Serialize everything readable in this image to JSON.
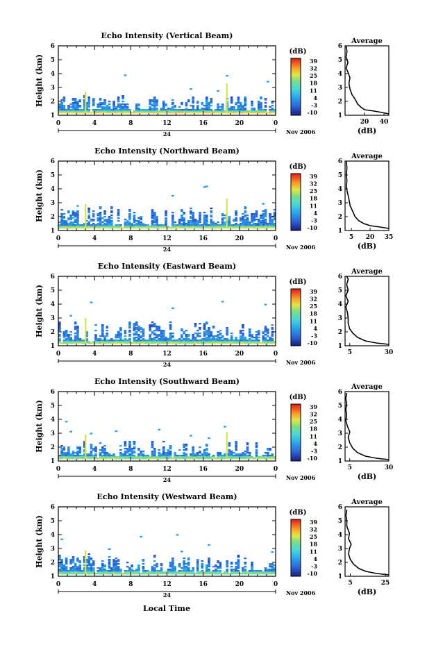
{
  "chart_data": [
    {
      "type": "heatmap",
      "title": "Echo Intensity (Vertical Beam)",
      "ylabel": "Height (km)",
      "ylim": [
        1,
        6
      ],
      "yticks": [
        "1",
        "2",
        "3",
        "4",
        "5",
        "6"
      ],
      "xlim": [
        0,
        24
      ],
      "xticks": [
        "0",
        "4",
        "8",
        "12",
        "16",
        "20",
        "0"
      ],
      "date_label": "24",
      "month_label": "Nov 2006",
      "colorbar": {
        "unit": "(dB)",
        "range": [
          -10,
          40
        ],
        "ticks": [
          "39",
          "32",
          "25",
          "18",
          "11",
          "4",
          "-3",
          "-10"
        ]
      },
      "sparse_echo": {
        "top_km": 2.4,
        "bright_band_db": 30,
        "spike_hours": [
          3.0,
          18.6
        ],
        "spike_top_km": [
          2.7,
          3.3
        ]
      },
      "average": {
        "title": "Average",
        "xlabel": "(dB)",
        "xlim": [
          0,
          45
        ],
        "xticks": [
          "20",
          "40"
        ],
        "ylim": [
          1,
          6
        ],
        "yticks": [
          "1",
          "2",
          "3",
          "4",
          "5",
          "6"
        ],
        "points": [
          [
            45,
            1.1
          ],
          [
            38,
            1.2
          ],
          [
            30,
            1.3
          ],
          [
            20,
            1.4
          ],
          [
            16,
            1.6
          ],
          [
            13,
            1.8
          ],
          [
            10,
            2.2
          ],
          [
            7,
            2.5
          ],
          [
            5,
            2.9
          ],
          [
            4,
            3.3
          ],
          [
            5,
            3.7
          ],
          [
            3,
            4.1
          ],
          [
            1,
            4.4
          ],
          [
            3,
            4.8
          ],
          [
            1,
            5.2
          ],
          [
            2,
            5.6
          ],
          [
            1,
            6.0
          ]
        ]
      }
    },
    {
      "type": "heatmap",
      "title": "Echo Intensity (Northward Beam)",
      "ylabel": "Height (km)",
      "ylim": [
        1,
        6
      ],
      "yticks": [
        "1",
        "2",
        "3",
        "4",
        "5",
        "6"
      ],
      "xlim": [
        0,
        24
      ],
      "xticks": [
        "0",
        "4",
        "8",
        "12",
        "16",
        "20",
        "0"
      ],
      "date_label": "24",
      "month_label": "Nov 2006",
      "colorbar": {
        "unit": "(dB)",
        "range": [
          -10,
          40
        ],
        "ticks": [
          "39",
          "32",
          "25",
          "18",
          "11",
          "4",
          "-3",
          "-10"
        ]
      },
      "sparse_echo": {
        "top_km": 2.7,
        "bright_band_db": 28,
        "spike_hours": [
          3.0,
          18.6
        ],
        "spike_top_km": [
          2.9,
          3.3
        ]
      },
      "average": {
        "title": "Average",
        "xlabel": "(dB)",
        "xlim": [
          0,
          35
        ],
        "xticks": [
          "5",
          "20",
          "35"
        ],
        "ylim": [
          1,
          6
        ],
        "yticks": [
          "1",
          "2",
          "3",
          "4",
          "5",
          "6"
        ],
        "points": [
          [
            35,
            1.15
          ],
          [
            28,
            1.25
          ],
          [
            20,
            1.35
          ],
          [
            15,
            1.5
          ],
          [
            11,
            1.7
          ],
          [
            8,
            2.0
          ],
          [
            6,
            2.4
          ],
          [
            4,
            2.8
          ],
          [
            3,
            3.3
          ],
          [
            2,
            3.7
          ],
          [
            1,
            4.1
          ],
          [
            1.5,
            4.6
          ],
          [
            1,
            5.0
          ],
          [
            1.5,
            5.5
          ],
          [
            1,
            6.0
          ]
        ]
      }
    },
    {
      "type": "heatmap",
      "title": "Echo Intensity (Eastward Beam)",
      "ylabel": "Height (km)",
      "ylim": [
        1,
        6
      ],
      "yticks": [
        "1",
        "2",
        "3",
        "4",
        "5",
        "6"
      ],
      "xlim": [
        0,
        24
      ],
      "xticks": [
        "0",
        "4",
        "8",
        "12",
        "16",
        "20",
        "0"
      ],
      "date_label": "24",
      "month_label": "Nov 2006",
      "colorbar": {
        "unit": "(dB)",
        "range": [
          -10,
          40
        ],
        "ticks": [
          "39",
          "32",
          "25",
          "18",
          "11",
          "4",
          "-3",
          "-10"
        ]
      },
      "sparse_echo": {
        "top_km": 2.8,
        "bright_band_db": 26,
        "spike_hours": [
          3.0
        ],
        "spike_top_km": [
          3.0
        ]
      },
      "average": {
        "title": "Average",
        "xlabel": "",
        "xlim": [
          2,
          30
        ],
        "xticks": [
          "5",
          "30"
        ],
        "ylim": [
          1,
          6
        ],
        "yticks": [
          "1",
          "2",
          "3",
          "4",
          "5",
          "6"
        ],
        "points": [
          [
            30,
            1.1
          ],
          [
            22,
            1.2
          ],
          [
            15,
            1.35
          ],
          [
            10,
            1.6
          ],
          [
            7,
            1.9
          ],
          [
            5,
            2.2
          ],
          [
            4,
            2.6
          ],
          [
            4,
            3.0
          ],
          [
            3.5,
            3.4
          ],
          [
            2.5,
            3.8
          ],
          [
            4,
            4.2
          ],
          [
            2.5,
            4.6
          ],
          [
            4,
            5.0
          ],
          [
            3,
            5.4
          ],
          [
            4,
            5.8
          ],
          [
            3,
            6.0
          ]
        ]
      }
    },
    {
      "type": "heatmap",
      "title": "Echo Intensity (Southward Beam)",
      "ylabel": "Height (km)",
      "ylim": [
        1,
        6
      ],
      "yticks": [
        "1",
        "2",
        "3",
        "4",
        "5",
        "6"
      ],
      "xlim": [
        0,
        24
      ],
      "xticks": [
        "0",
        "4",
        "8",
        "12",
        "16",
        "20",
        "0"
      ],
      "date_label": "24",
      "month_label": "Nov 2006",
      "colorbar": {
        "unit": "(dB)",
        "range": [
          -10,
          40
        ],
        "ticks": [
          "39",
          "32",
          "25",
          "18",
          "11",
          "4",
          "-3",
          "-10"
        ]
      },
      "sparse_echo": {
        "top_km": 2.5,
        "bright_band_db": 25,
        "spike_hours": [
          3.0,
          18.6
        ],
        "spike_top_km": [
          2.9,
          3.1
        ]
      },
      "average": {
        "title": "Average",
        "xlabel": "(dB)",
        "xlim": [
          2,
          30
        ],
        "xticks": [
          "5",
          "30"
        ],
        "ylim": [
          1,
          6
        ],
        "yticks": [
          "1",
          "2",
          "3",
          "4",
          "5",
          "6"
        ],
        "points": [
          [
            30,
            1.1
          ],
          [
            22,
            1.2
          ],
          [
            15,
            1.35
          ],
          [
            10,
            1.6
          ],
          [
            7,
            1.9
          ],
          [
            5,
            2.3
          ],
          [
            4,
            2.7
          ],
          [
            5,
            3.1
          ],
          [
            3.5,
            3.5
          ],
          [
            2.5,
            3.9
          ],
          [
            3,
            4.3
          ],
          [
            2.5,
            4.7
          ],
          [
            3,
            5.1
          ],
          [
            2.5,
            5.5
          ],
          [
            3,
            5.9
          ]
        ]
      }
    },
    {
      "type": "heatmap",
      "title": "Echo Intensity (Westward Beam)",
      "ylabel": "Height (km)",
      "ylim": [
        1,
        6
      ],
      "yticks": [
        "1",
        "2",
        "3",
        "4",
        "5",
        "6"
      ],
      "xlim": [
        0,
        24
      ],
      "xticks": [
        "0",
        "4",
        "8",
        "12",
        "16",
        "20",
        "0"
      ],
      "date_label": "24",
      "month_label": "Nov 2006",
      "colorbar": {
        "unit": "(dB)",
        "range": [
          -10,
          40
        ],
        "ticks": [
          "39",
          "32",
          "25",
          "18",
          "11",
          "4",
          "-3",
          "-10"
        ]
      },
      "sparse_echo": {
        "top_km": 2.6,
        "bright_band_db": 22,
        "spike_hours": [
          3.0
        ],
        "spike_top_km": [
          2.9
        ]
      },
      "average": {
        "title": "Average",
        "xlabel": "(dB)",
        "xlim": [
          2,
          27
        ],
        "xticks": [
          "5",
          "25"
        ],
        "ylim": [
          1,
          6
        ],
        "yticks": [
          "1",
          "2",
          "3",
          "4",
          "5",
          "6"
        ],
        "points": [
          [
            27,
            1.1
          ],
          [
            20,
            1.2
          ],
          [
            14,
            1.35
          ],
          [
            10,
            1.55
          ],
          [
            7,
            1.85
          ],
          [
            5,
            2.2
          ],
          [
            4,
            2.6
          ],
          [
            4.5,
            3.0
          ],
          [
            5.5,
            3.3
          ],
          [
            4,
            3.7
          ],
          [
            4.5,
            4.1
          ],
          [
            3,
            4.6
          ],
          [
            3,
            5.0
          ],
          [
            2.5,
            5.4
          ],
          [
            3,
            5.8
          ]
        ]
      }
    }
  ],
  "footer": {
    "xlabel": "Local Time"
  }
}
